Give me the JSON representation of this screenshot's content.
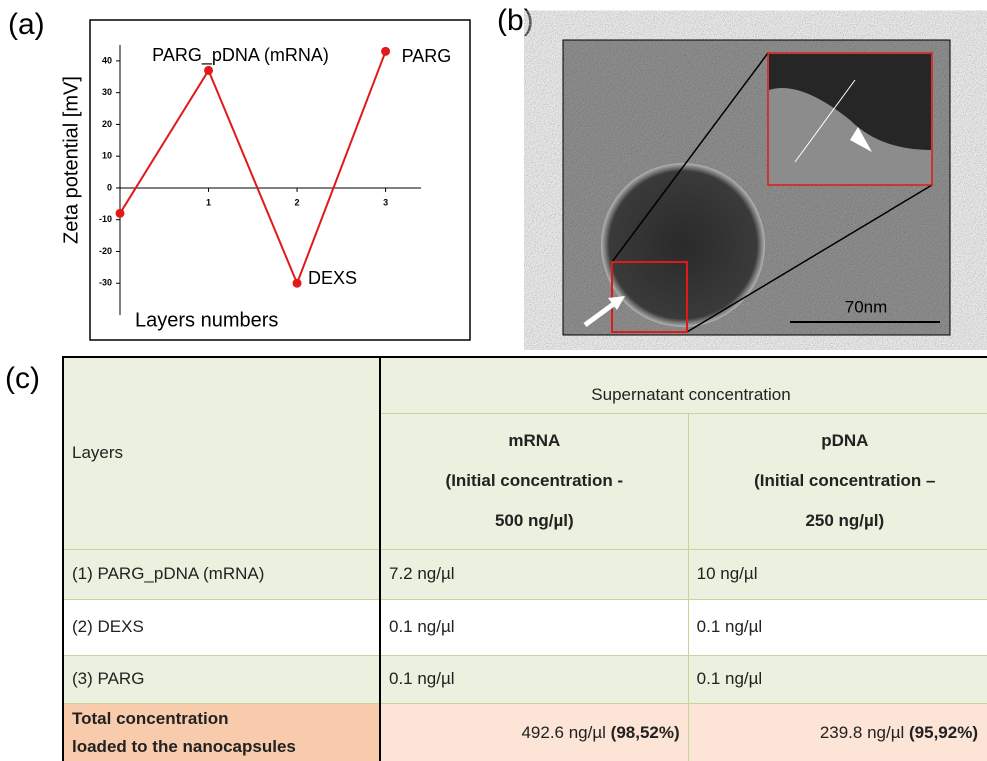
{
  "panel_labels": [
    "(a)",
    "(b)",
    "(c)"
  ],
  "chart_data": {
    "type": "line",
    "x_label": "Layers numbers",
    "y_label": "Zeta potential [mV]",
    "x": [
      0,
      1,
      2,
      3
    ],
    "values": [
      -8,
      37,
      -30,
      43
    ],
    "color": "#e0191b",
    "point_labels": [
      null,
      "PARG_pDNA (mRNA)",
      "DEXS",
      "PARG"
    ],
    "xlim": [
      0,
      3.4
    ],
    "ylim": [
      -40,
      45
    ],
    "xticks": [
      1,
      2,
      3
    ],
    "yticks": [
      -30,
      -20,
      -10,
      0,
      10,
      20,
      30,
      40
    ]
  },
  "image": {
    "scale_label": "70nm"
  },
  "table": {
    "header": {
      "layers": "Layers",
      "group": "Supernatant concentration",
      "columns": [
        [
          "mRNA",
          "(Initial concentration -",
          "500 ng/µl)"
        ],
        [
          "pDNA",
          "(Initial concentration –",
          "250 ng/µl)"
        ]
      ]
    },
    "rows": [
      [
        "(1) PARG_pDNA (mRNA)",
        "7.2 ng/µl",
        "10 ng/µl"
      ],
      [
        "(2) DEXS",
        "0.1 ng/µl",
        "0.1 ng/µl"
      ],
      [
        "(3) PARG",
        "0.1 ng/µl",
        "0.1 ng/µl"
      ]
    ],
    "total": {
      "label": [
        "Total concentration",
        "loaded to the nanocapsules"
      ],
      "cells": [
        {
          "text": "492.6 ng/µl",
          "bold": "(98,52%)"
        },
        {
          "text": "239.8 ng/µl",
          "bold": "(95,92%)"
        }
      ]
    }
  }
}
